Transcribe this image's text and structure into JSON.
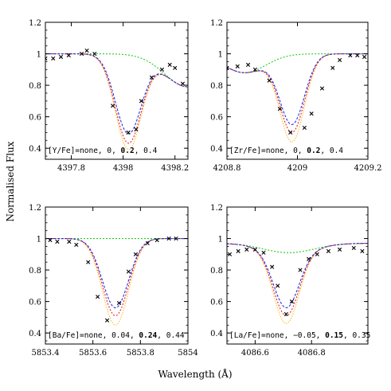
{
  "figure": {
    "ylabel": "Normalised Flux",
    "xlabel": "Wavelength (Å)"
  },
  "colors": {
    "green": "#22cc22",
    "blue": "#2233ee",
    "red": "#ee2222",
    "orange": "#ffbb33",
    "obs": "#000000"
  },
  "chart_data": [
    {
      "type": "line",
      "label_prefix": "[Y/Fe]=none, 0, ",
      "label_bold": "0.2",
      "label_suffix": ", 0.4",
      "xlim": [
        4397.7,
        4398.25
      ],
      "ylim": [
        0.33,
        1.2
      ],
      "xticks": [
        4397.8,
        4398,
        4398.2
      ],
      "xtick_labels": [
        "4397.8",
        "4398",
        "4398.2"
      ],
      "yticks": [
        0.4,
        0.6,
        0.8,
        1,
        1.2
      ],
      "ytick_labels": [
        "0.4",
        "0.6",
        "0.8",
        "1",
        "1.2"
      ],
      "center": 4398.02,
      "sigma": 0.05,
      "cont": {
        "kind": "dip",
        "base": 1.0,
        "c": 4398.25,
        "s": 0.09,
        "d": 0.21
      },
      "series": [
        {
          "key": "green",
          "depth": 0.0
        },
        {
          "key": "blue",
          "depth": 0.5
        },
        {
          "key": "red",
          "depth": 0.56
        },
        {
          "key": "orange",
          "depth": 0.6
        }
      ],
      "observed": [
        [
          4397.7,
          0.97
        ],
        [
          4397.73,
          0.97
        ],
        [
          4397.76,
          0.98
        ],
        [
          4397.79,
          0.99
        ],
        [
          4397.84,
          1.0
        ],
        [
          4397.86,
          1.02
        ],
        [
          4397.89,
          1.0
        ],
        [
          4397.96,
          0.67
        ],
        [
          4398.02,
          0.5
        ],
        [
          4398.05,
          0.52
        ],
        [
          4398.07,
          0.7
        ],
        [
          4398.11,
          0.85
        ],
        [
          4398.15,
          0.9
        ],
        [
          4398.18,
          0.93
        ],
        [
          4398.2,
          0.91
        ],
        [
          4398.23,
          0.81
        ]
      ]
    },
    {
      "type": "line",
      "label_prefix": "[Zr/Fe]=none, 0, ",
      "label_bold": "0.2",
      "label_suffix": ", 0.4",
      "xlim": [
        4208.8,
        4209.2
      ],
      "ylim": [
        0.33,
        1.2
      ],
      "xticks": [
        4208.8,
        4209,
        4209.2
      ],
      "xtick_labels": [
        "4208.8",
        "4209",
        "4209.2"
      ],
      "yticks": [
        0.4,
        0.6,
        0.8,
        1,
        1.2
      ],
      "ytick_labels": [
        "0.4",
        "0.6",
        "0.8",
        "1",
        "1.2"
      ],
      "center": 4208.985,
      "sigma": 0.035,
      "cont": {
        "kind": "dip",
        "base": 1.0,
        "c": 4208.85,
        "s": 0.06,
        "d": 0.12
      },
      "series": [
        {
          "key": "green",
          "depth": 0.0
        },
        {
          "key": "blue",
          "depth": 0.44
        },
        {
          "key": "red",
          "depth": 0.49
        },
        {
          "key": "orange",
          "depth": 0.55
        }
      ],
      "observed": [
        [
          4208.8,
          0.91
        ],
        [
          4208.83,
          0.92
        ],
        [
          4208.86,
          0.93
        ],
        [
          4208.88,
          0.9
        ],
        [
          4208.92,
          0.83
        ],
        [
          4208.95,
          0.65
        ],
        [
          4208.98,
          0.5
        ],
        [
          4209.02,
          0.53
        ],
        [
          4209.04,
          0.62
        ],
        [
          4209.07,
          0.78
        ],
        [
          4209.1,
          0.91
        ],
        [
          4209.12,
          0.96
        ],
        [
          4209.15,
          0.99
        ],
        [
          4209.17,
          0.99
        ],
        [
          4209.19,
          0.98
        ]
      ]
    },
    {
      "type": "line",
      "label_prefix": "[Ba/Fe]=none, 0.04, ",
      "label_bold": "0.24",
      "label_suffix": ", 0.44",
      "xlim": [
        5853.4,
        5854.0
      ],
      "ylim": [
        0.33,
        1.2
      ],
      "xticks": [
        5853.4,
        5853.6,
        5853.8,
        5854
      ],
      "xtick_labels": [
        "5853.4",
        "5853.6",
        "5853.8",
        "5854"
      ],
      "yticks": [
        0.4,
        0.6,
        0.8,
        1,
        1.2
      ],
      "ytick_labels": [
        "0.4",
        "0.6",
        "0.8",
        "1",
        "1.2"
      ],
      "center": 5853.695,
      "sigma": 0.055,
      "cont": {
        "kind": "flat",
        "base": 1.0
      },
      "series": [
        {
          "key": "green",
          "depth": 0.0
        },
        {
          "key": "blue",
          "depth": 0.44
        },
        {
          "key": "red",
          "depth": 0.49
        },
        {
          "key": "orange",
          "depth": 0.55
        }
      ],
      "observed": [
        [
          5853.42,
          0.99
        ],
        [
          5853.45,
          0.98
        ],
        [
          5853.5,
          0.98
        ],
        [
          5853.53,
          0.96
        ],
        [
          5853.58,
          0.85
        ],
        [
          5853.62,
          0.63
        ],
        [
          5853.66,
          0.48
        ],
        [
          5853.71,
          0.59
        ],
        [
          5853.75,
          0.79
        ],
        [
          5853.78,
          0.9
        ],
        [
          5853.83,
          0.97
        ],
        [
          5853.87,
          0.99
        ],
        [
          5853.92,
          1.0
        ],
        [
          5853.95,
          1.0
        ]
      ]
    },
    {
      "type": "line",
      "label_prefix": "[La/Fe]=none, −0.05, ",
      "label_bold": "0.15",
      "label_suffix": ", 0.35",
      "xlim": [
        4086.5,
        4087.0
      ],
      "ylim": [
        0.33,
        1.2
      ],
      "xticks": [
        4086.6,
        4086.8
      ],
      "xtick_labels": [
        "4086.6",
        "4086.8"
      ],
      "yticks": [
        0.4,
        0.6,
        0.8,
        1,
        1.2
      ],
      "ytick_labels": [
        "0.4",
        "0.6",
        "0.8",
        "1",
        "1.2"
      ],
      "center": 4086.71,
      "sigma": 0.045,
      "cont": {
        "kind": "dip",
        "base": 0.97,
        "c": 4086.72,
        "s": 0.09,
        "d": 0.06
      },
      "series": [
        {
          "key": "green",
          "depth": 0.0
        },
        {
          "key": "blue",
          "depth": 0.35
        },
        {
          "key": "red",
          "depth": 0.4
        },
        {
          "key": "orange",
          "depth": 0.45
        }
      ],
      "observed": [
        [
          4086.51,
          0.9
        ],
        [
          4086.54,
          0.92
        ],
        [
          4086.57,
          0.93
        ],
        [
          4086.6,
          0.93
        ],
        [
          4086.63,
          0.91
        ],
        [
          4086.66,
          0.82
        ],
        [
          4086.68,
          0.7
        ],
        [
          4086.71,
          0.52
        ],
        [
          4086.73,
          0.6
        ],
        [
          4086.76,
          0.8
        ],
        [
          4086.79,
          0.87
        ],
        [
          4086.82,
          0.9
        ],
        [
          4086.86,
          0.92
        ],
        [
          4086.9,
          0.93
        ],
        [
          4086.95,
          0.94
        ],
        [
          4086.98,
          0.92
        ]
      ]
    }
  ]
}
